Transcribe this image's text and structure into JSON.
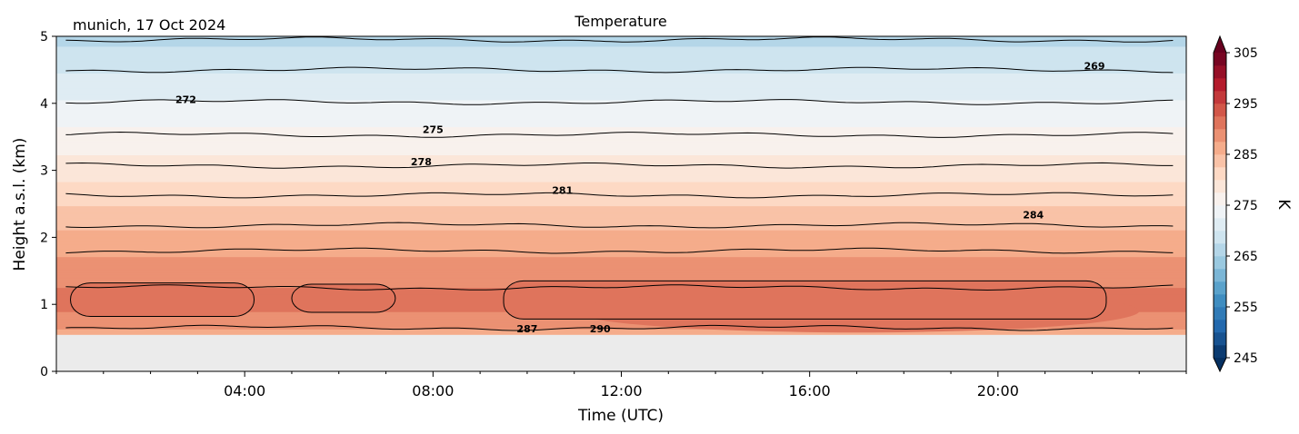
{
  "chart_data": {
    "type": "heatmap",
    "title": "Temperature",
    "subtitle": "munich, 17 Oct 2024",
    "xlabel": "Time (UTC)",
    "ylabel": "Height a.s.l. (km)",
    "xlim": [
      "00:00",
      "24:00"
    ],
    "ylim": [
      0,
      5
    ],
    "xticks": [
      "04:00",
      "08:00",
      "12:00",
      "16:00",
      "20:00"
    ],
    "yticks": [
      "0",
      "1",
      "2",
      "3",
      "4",
      "5"
    ],
    "data_bottom_km": 0.55,
    "colorbar": {
      "label": "K",
      "range": [
        245,
        305
      ],
      "step": 2.5,
      "ticks": [
        "245",
        "255",
        "265",
        "275",
        "285",
        "295",
        "305"
      ],
      "extend": "both"
    },
    "profile": [
      {
        "height_km": 0.55,
        "temperature_K": 286.5
      },
      {
        "height_km": 0.7,
        "temperature_K": 288.5
      },
      {
        "height_km": 0.85,
        "temperature_K": 289.8
      },
      {
        "height_km": 1.0,
        "temperature_K": 290.5
      },
      {
        "height_km": 1.25,
        "temperature_K": 290.0
      },
      {
        "height_km": 1.5,
        "temperature_K": 288.8
      },
      {
        "height_km": 1.8,
        "temperature_K": 287.0
      },
      {
        "height_km": 2.1,
        "temperature_K": 285.0
      },
      {
        "height_km": 2.4,
        "temperature_K": 283.0
      },
      {
        "height_km": 2.7,
        "temperature_K": 281.0
      },
      {
        "height_km": 3.0,
        "temperature_K": 278.8
      },
      {
        "height_km": 3.4,
        "temperature_K": 276.5
      },
      {
        "height_km": 3.8,
        "temperature_K": 274.0
      },
      {
        "height_km": 4.2,
        "temperature_K": 271.5
      },
      {
        "height_km": 4.6,
        "temperature_K": 269.0
      },
      {
        "height_km": 5.0,
        "temperature_K": 266.5
      }
    ],
    "contours": [
      {
        "level": 269,
        "height_km": 4.5
      },
      {
        "level": 270.5,
        "height_km": 4.95
      },
      {
        "level": 272,
        "height_km": 4.02
      },
      {
        "level": 275,
        "height_km": 3.53
      },
      {
        "level": 278,
        "height_km": 3.07
      },
      {
        "level": 281,
        "height_km": 2.63
      },
      {
        "level": 282.5,
        "height_km": 2.18
      },
      {
        "level": 284,
        "height_km": 1.8
      },
      {
        "level": 287,
        "height_km": 0.65
      },
      {
        "level": 290,
        "height_km": 1.25
      }
    ],
    "contour_labels": [
      {
        "text": "269",
        "time_h": 22.05,
        "height_km": 4.56
      },
      {
        "text": "272",
        "time_h": 2.75,
        "height_km": 4.06
      },
      {
        "text": "275",
        "time_h": 8.0,
        "height_km": 3.61
      },
      {
        "text": "278",
        "time_h": 7.75,
        "height_km": 3.13
      },
      {
        "text": "281",
        "time_h": 10.75,
        "height_km": 2.7
      },
      {
        "text": "284",
        "time_h": 20.75,
        "height_km": 2.34
      },
      {
        "text": "287",
        "time_h": 10.0,
        "height_km": 0.64
      },
      {
        "text": "290",
        "time_h": 11.55,
        "height_km": 0.64
      }
    ],
    "warm_cores": [
      {
        "t1": 0.3,
        "t2": 4.2,
        "h1": 0.82,
        "h2": 1.32
      },
      {
        "t1": 5.0,
        "t2": 7.2,
        "h1": 0.88,
        "h2": 1.3
      },
      {
        "t1": 9.5,
        "t2": 22.3,
        "h1": 0.78,
        "h2": 1.35
      }
    ],
    "hot_zone": {
      "t1": 11.0,
      "t2": 23.0,
      "h1": 0.58,
      "h2": 1.22
    }
  }
}
